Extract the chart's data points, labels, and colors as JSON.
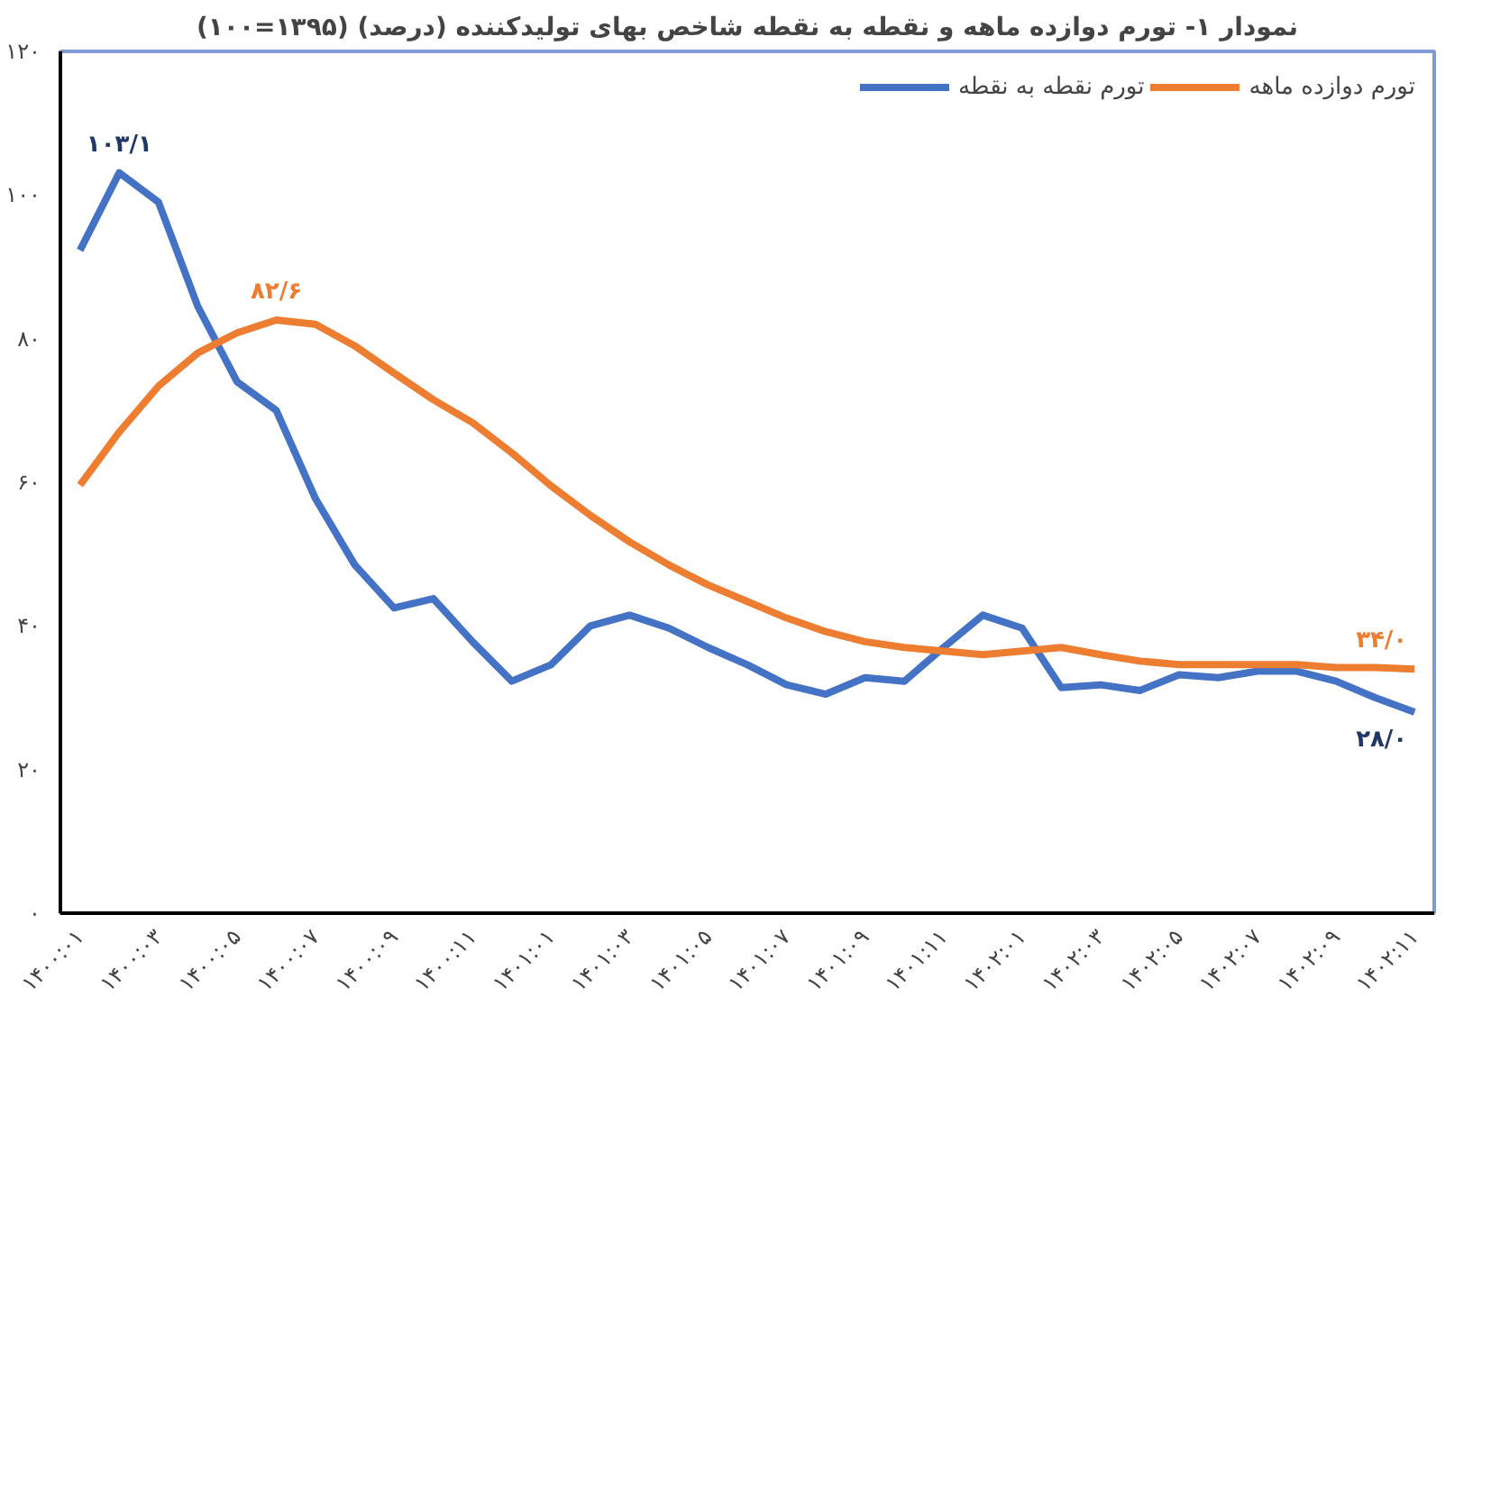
{
  "chart_data": {
    "type": "line",
    "title": "نمودار ۱- تورم دوازده ماهه و نقطه به نقطه شاخص بهای تولیدکننده (درصد) (۱۳۹۵=۱۰۰)",
    "categories": [
      "۱۴۰۰:۰۱",
      null,
      "۱۴۰۰:۰۳",
      null,
      "۱۴۰۰:۰۵",
      null,
      "۱۴۰۰:۰۷",
      null,
      "۱۴۰۰:۰۹",
      null,
      "۱۴۰۰:۱۱",
      null,
      "۱۴۰۱:۰۱",
      null,
      "۱۴۰۱:۰۳",
      null,
      "۱۴۰۱:۰۵",
      null,
      "۱۴۰۱:۰۷",
      null,
      "۱۴۰۱:۰۹",
      null,
      "۱۴۰۱:۱۱",
      null,
      "۱۴۰۲:۰۱",
      null,
      "۱۴۰۲:۰۳",
      null,
      "۱۴۰۲:۰۵",
      null,
      "۱۴۰۲:۰۷",
      null,
      "۱۴۰۲:۰۹",
      null,
      "۱۴۰۲:۱۱"
    ],
    "series": [
      {
        "name": "تورم نقطه به نقطه",
        "color": "#4472c4",
        "values": [
          92.3,
          103.1,
          99,
          84.5,
          74,
          70,
          57.7,
          48.5,
          42.5,
          43.8,
          37.8,
          32.3,
          34.6,
          40,
          41.5,
          39.7,
          37,
          34.6,
          31.8,
          30.5,
          32.8,
          32.3,
          37,
          41.5,
          39.7,
          31.4,
          31.8,
          31,
          33.2,
          32.8,
          33.7,
          33.7,
          32.3,
          30,
          28.0
        ],
        "value_labels": [
          null,
          "۱۰۳/۱",
          null,
          null,
          null,
          null,
          null,
          null,
          null,
          null,
          null,
          null,
          null,
          null,
          null,
          null,
          null,
          null,
          null,
          null,
          null,
          null,
          null,
          null,
          null,
          null,
          null,
          null,
          null,
          null,
          null,
          null,
          null,
          null,
          "۲۸/۰"
        ]
      },
      {
        "name": "تورم دوازده ماهه",
        "color": "#ed7d31",
        "values": [
          59.6,
          67,
          73.4,
          78,
          80.8,
          82.6,
          82,
          79,
          75.2,
          71.5,
          68.3,
          64.1,
          59.5,
          55.4,
          51.7,
          48.5,
          45.7,
          43.4,
          41.1,
          39.2,
          37.8,
          37,
          36.5,
          36,
          36.5,
          37,
          36,
          35.1,
          34.6,
          34.6,
          34.6,
          34.6,
          34.2,
          34.2,
          34.0
        ],
        "value_labels": [
          null,
          null,
          null,
          null,
          null,
          "۸۲/۶",
          null,
          null,
          null,
          null,
          null,
          null,
          null,
          null,
          null,
          null,
          null,
          null,
          null,
          null,
          null,
          null,
          null,
          null,
          null,
          null,
          null,
          null,
          null,
          null,
          null,
          null,
          null,
          null,
          "۳۴/۰"
        ]
      }
    ],
    "ylim": [
      0,
      120
    ],
    "yticks": [
      {
        "value": 0,
        "label": "۰"
      },
      {
        "value": 20,
        "label": "۲۰"
      },
      {
        "value": 40,
        "label": "۴۰"
      },
      {
        "value": 60,
        "label": "۶۰"
      },
      {
        "value": 80,
        "label": "۸۰"
      },
      {
        "value": 100,
        "label": "۱۰۰"
      },
      {
        "value": 120,
        "label": "۱۲۰"
      }
    ],
    "legend": "top right"
  }
}
